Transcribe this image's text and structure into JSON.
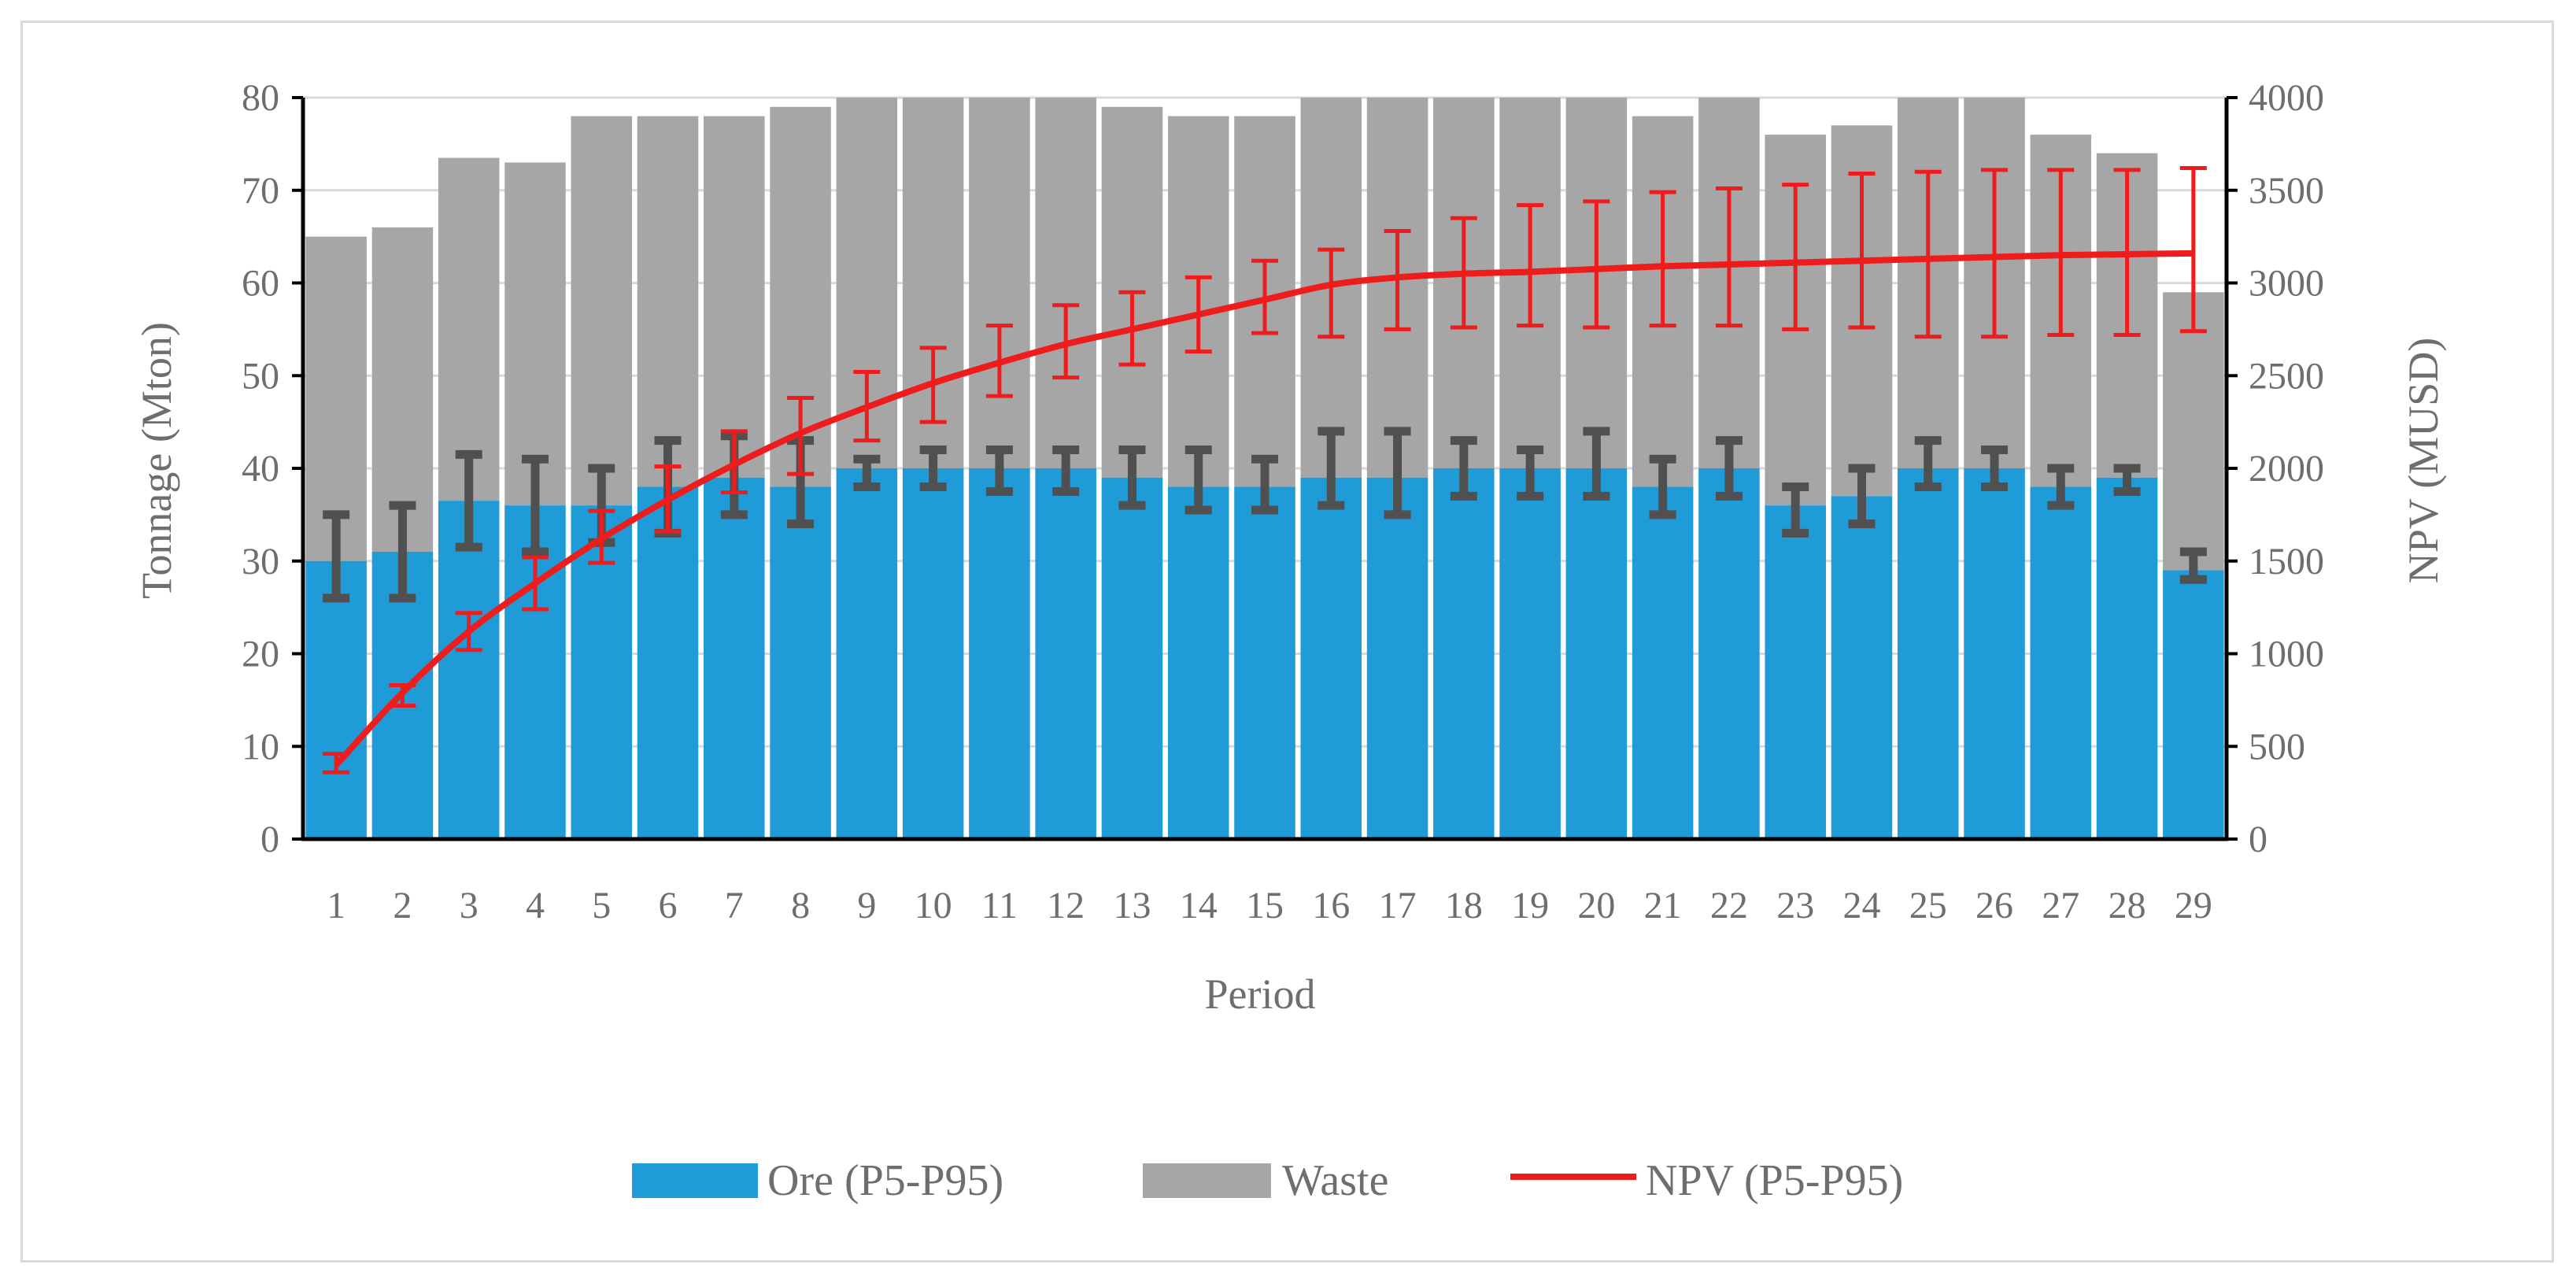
{
  "chart_data": {
    "type": "bar",
    "stacked": true,
    "title": "",
    "xlabel": "Period",
    "ylabel": "Tonnage (Mton)",
    "y2label": "NPV (MUSD)",
    "ylim": [
      0,
      80
    ],
    "y2lim": [
      0,
      4000
    ],
    "yticks": [
      "0",
      "10",
      "20",
      "30",
      "40",
      "50",
      "60",
      "70",
      "80"
    ],
    "y2ticks": [
      "0",
      "500",
      "1000",
      "1500",
      "2000",
      "2500",
      "3000",
      "3500",
      "4000"
    ],
    "categories": [
      "1",
      "2",
      "3",
      "4",
      "5",
      "6",
      "7",
      "8",
      "9",
      "10",
      "11",
      "12",
      "13",
      "14",
      "15",
      "16",
      "17",
      "18",
      "19",
      "20",
      "21",
      "22",
      "23",
      "24",
      "25",
      "26",
      "27",
      "28",
      "29"
    ],
    "grid": "horizontal",
    "legend_position": "bottom",
    "series": [
      {
        "name": "Ore (P5-P95)",
        "type": "bar",
        "axis": "left",
        "color": "#1f9bd7",
        "values": [
          30,
          31,
          36.5,
          36,
          36,
          38,
          39,
          38,
          40,
          40,
          40,
          40,
          39,
          38,
          38,
          39,
          39,
          40,
          40,
          40,
          38,
          40,
          36,
          37,
          40,
          40,
          38,
          39,
          29
        ],
        "p5": [
          26,
          26,
          31.5,
          31,
          32,
          33,
          35,
          34,
          38,
          38,
          37.5,
          37.5,
          36,
          35.5,
          35.5,
          36,
          35,
          37,
          37,
          37,
          35,
          37,
          33,
          34,
          38,
          38,
          36,
          37.5,
          28
        ],
        "p95": [
          35,
          36,
          41.5,
          41,
          40,
          43,
          43.5,
          43,
          41,
          42,
          42,
          42,
          42,
          42,
          41,
          44,
          44,
          43,
          42,
          44,
          41,
          43,
          38,
          40,
          43,
          42,
          40,
          40,
          31
        ]
      },
      {
        "name": "Waste",
        "type": "bar",
        "axis": "left",
        "color": "#a6a6a6",
        "totals": [
          65,
          66,
          73.5,
          73,
          78,
          78,
          78,
          79,
          80,
          80,
          80,
          80,
          79,
          78,
          78,
          80,
          80,
          80,
          80,
          80,
          78,
          80,
          76,
          77,
          80,
          80,
          76,
          74,
          59
        ]
      },
      {
        "name": "NPV (P5-P95)",
        "type": "line",
        "axis": "right",
        "color": "#ee1c1c",
        "values": [
          400,
          790,
          1120,
          1380,
          1620,
          1830,
          2020,
          2190,
          2330,
          2460,
          2570,
          2670,
          2750,
          2830,
          2910,
          2990,
          3030,
          3050,
          3060,
          3075,
          3090,
          3100,
          3110,
          3120,
          3130,
          3140,
          3150,
          3155,
          3160
        ],
        "p5": [
          360,
          720,
          1020,
          1240,
          1490,
          1660,
          1870,
          1970,
          2150,
          2250,
          2390,
          2490,
          2560,
          2630,
          2730,
          2710,
          2750,
          2760,
          2770,
          2760,
          2770,
          2770,
          2750,
          2760,
          2710,
          2710,
          2720,
          2720,
          2740
        ],
        "p95": [
          460,
          830,
          1220,
          1520,
          1770,
          2010,
          2200,
          2380,
          2520,
          2650,
          2770,
          2880,
          2950,
          3030,
          3120,
          3180,
          3280,
          3350,
          3420,
          3440,
          3490,
          3510,
          3530,
          3590,
          3600,
          3610,
          3610,
          3610,
          3620
        ]
      }
    ]
  }
}
